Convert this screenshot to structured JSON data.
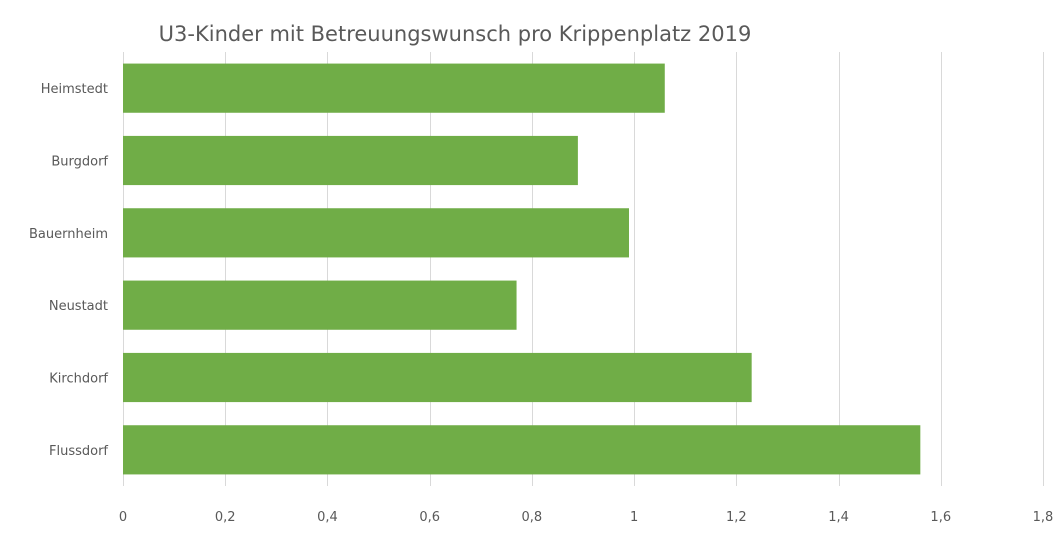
{
  "chart_data": {
    "type": "bar",
    "orientation": "horizontal",
    "title": "U3-Kinder mit Betreuungswunsch pro Krippenplatz 2019",
    "xlabel": "",
    "ylabel": "",
    "categories": [
      "Heimstedt",
      "Burgdorf",
      "Bauernheim",
      "Neustadt",
      "Kirchdorf",
      "Flussdorf"
    ],
    "values": [
      1.06,
      0.89,
      0.99,
      0.77,
      1.23,
      1.56
    ],
    "xlim": [
      0,
      1.8
    ],
    "xticks": [
      0,
      0.2,
      0.4,
      0.6,
      0.8,
      1,
      1.2,
      1.4,
      1.6,
      1.8
    ],
    "xtick_labels": [
      "0",
      "0,2",
      "0,4",
      "0,6",
      "0,8",
      "1",
      "1,2",
      "1,4",
      "1,6",
      "1,8"
    ],
    "grid": "vertical",
    "legend": "none",
    "bar_color": "#70ad47"
  }
}
